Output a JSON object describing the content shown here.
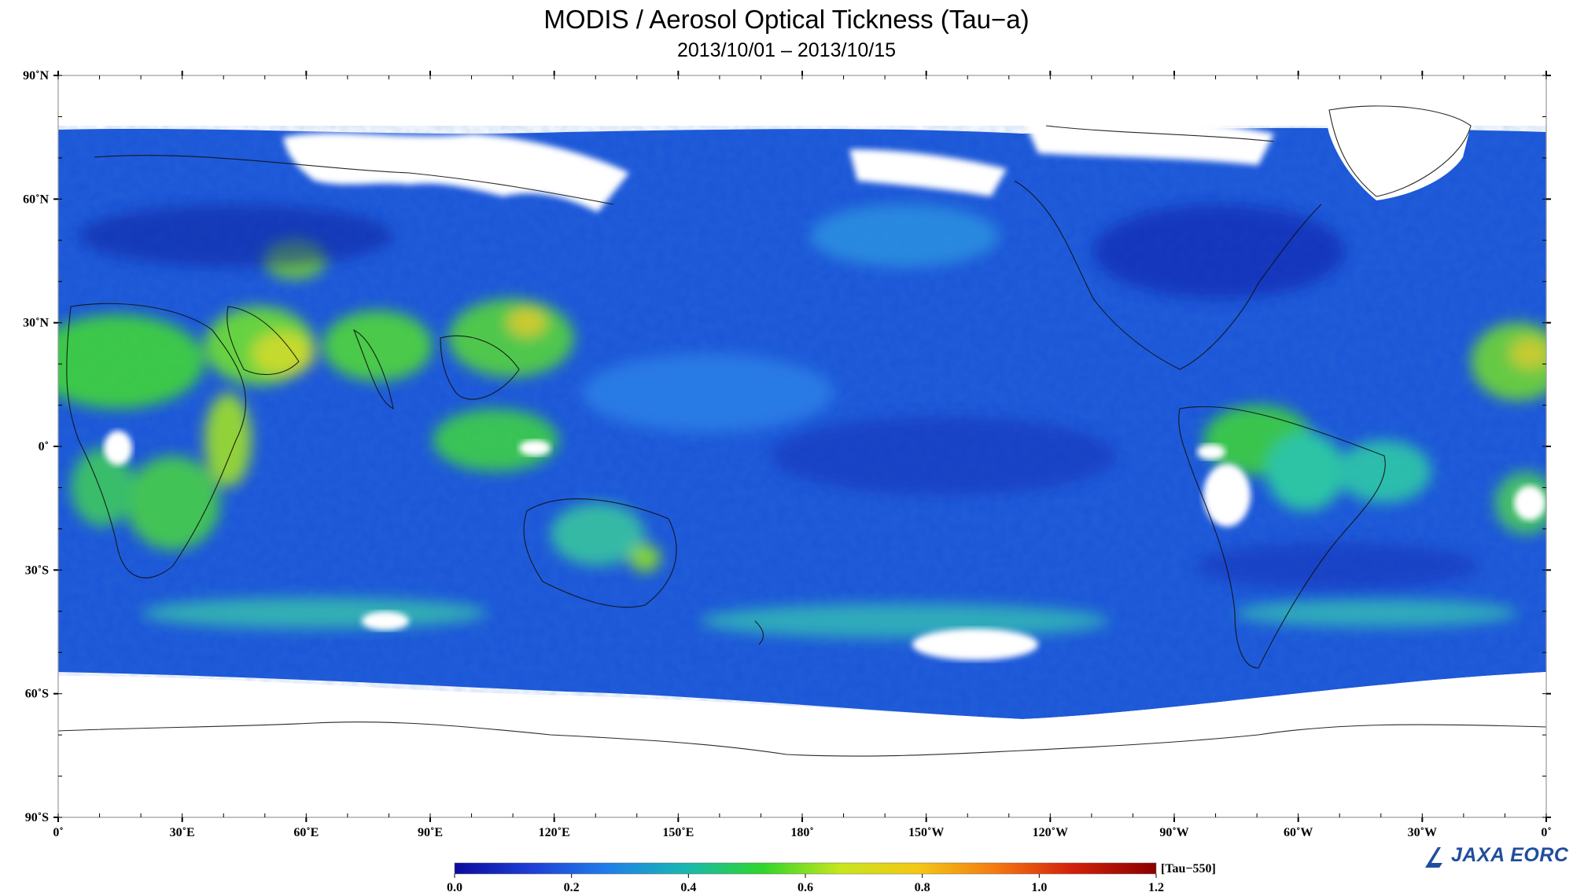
{
  "title": "MODIS / Aerosol Optical Tickness (Tau−a)",
  "subtitle": "2013/10/01 – 2013/10/15",
  "latitude_labels": [
    "90˚N",
    "60˚N",
    "30˚N",
    "0˚",
    "30˚S",
    "60˚S",
    "90˚S"
  ],
  "longitude_labels": [
    "0˚",
    "30˚E",
    "60˚E",
    "90˚E",
    "120˚E",
    "150˚E",
    "180˚",
    "150˚W",
    "120˚W",
    "90˚W",
    "60˚W",
    "30˚W",
    "0˚"
  ],
  "colorbar": {
    "unit_label": "[Tau−550]",
    "tick_labels": [
      "0.0",
      "0.2",
      "0.4",
      "0.6",
      "0.8",
      "1.0",
      "1.2"
    ],
    "range": [
      0.0,
      1.2
    ],
    "colors": [
      "#0b0b9a",
      "#1e3fd6",
      "#1f7fe8",
      "#18b8b0",
      "#2fd62a",
      "#c8e61c",
      "#f4c814",
      "#f47a12",
      "#d2200a",
      "#8a0000"
    ]
  },
  "map": {
    "ocean_color": "#1a55d8",
    "nodata_color": "#ffffff",
    "coastline_color": "#000000"
  },
  "logo": {
    "text": "JAXA EORC",
    "color": "#1f4e9c"
  }
}
